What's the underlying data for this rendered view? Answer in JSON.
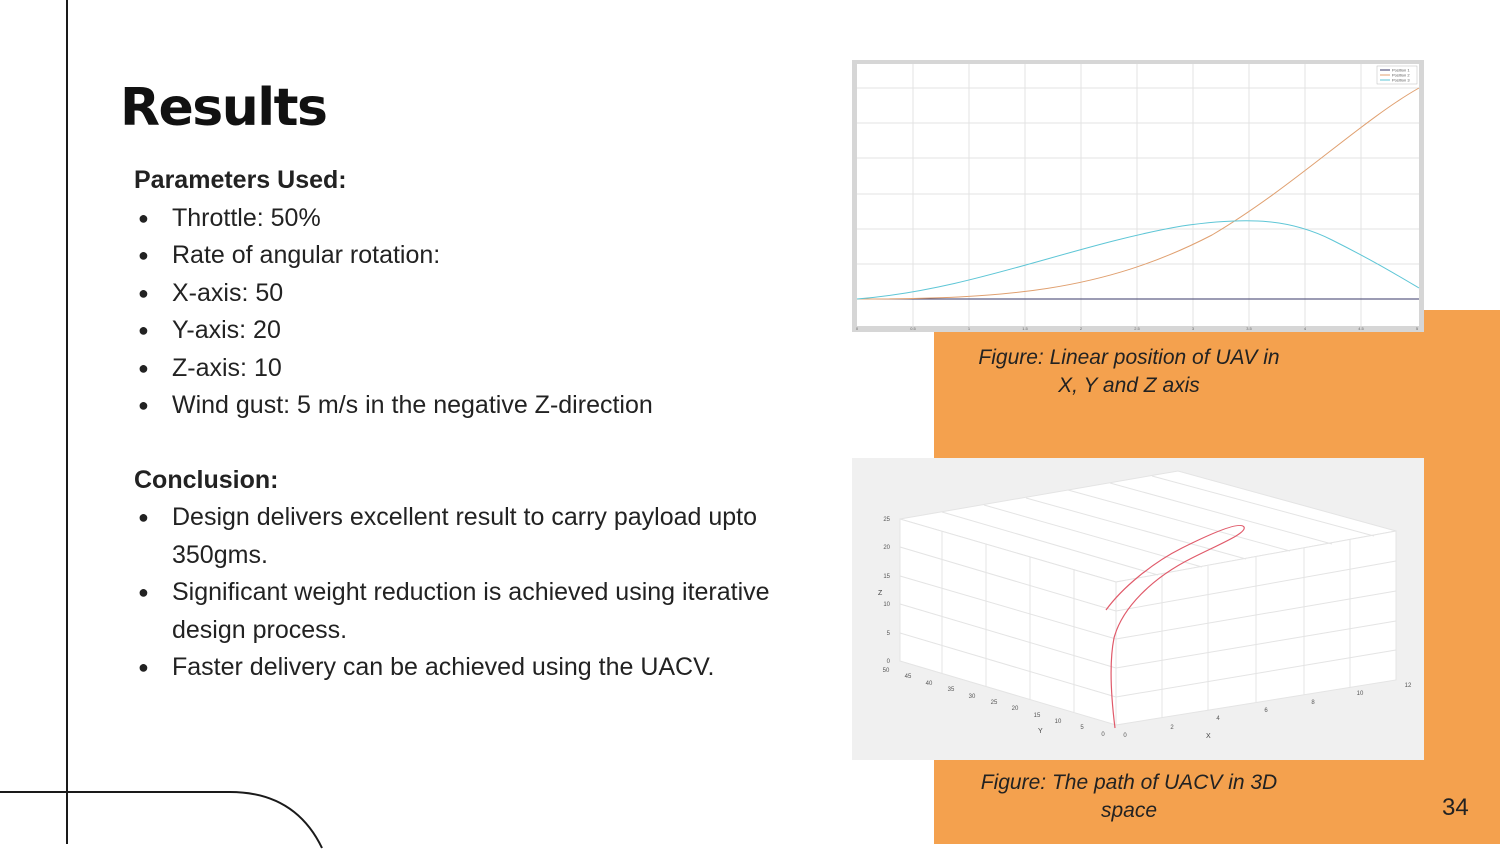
{
  "title": "Results",
  "parameters": {
    "heading": "Parameters Used:",
    "items": [
      "Throttle: 50%",
      "Rate of angular rotation:",
      "X-axis: 50",
      "Y-axis: 20",
      "Z-axis: 10",
      "Wind gust: 5 m/s in the negative Z-direction"
    ]
  },
  "conclusion": {
    "heading": "Conclusion:",
    "items": [
      "Design delivers excellent result to carry payload upto 350gms.",
      "Significant weight reduction is achieved using iterative design process.",
      "Faster delivery can be achieved using the UACV."
    ]
  },
  "figure1": {
    "caption_line1": "Figure: Linear position of UAV in",
    "caption_line2": "X, Y and Z axis",
    "legend": [
      "Position 1",
      "Position 2",
      "Position 3"
    ],
    "x_ticks": [
      "0",
      "0.5",
      "1",
      "1.5",
      "2",
      "2.5",
      "3",
      "3.5",
      "4",
      "4.5",
      "5"
    ],
    "series_colors": [
      "#3a3a6a",
      "#e0a070",
      "#5ec6d6"
    ]
  },
  "figure2": {
    "caption_line1": "Figure: The path of UACV in 3D",
    "caption_line2": "space",
    "z_ticks": [
      "0",
      "5",
      "10",
      "15",
      "20",
      "25"
    ],
    "y_ticks": [
      "50",
      "45",
      "40",
      "35",
      "30",
      "25",
      "20",
      "15",
      "10",
      "5",
      "0"
    ],
    "x_ticks": [
      "0",
      "2",
      "4",
      "6",
      "8",
      "10",
      "12"
    ],
    "z_label": "Z",
    "y_label": "Y",
    "x_label": "X",
    "path_color": "#e05a6a"
  },
  "page_number": "34",
  "colors": {
    "accent": "#f4a14e",
    "text": "#222222"
  }
}
